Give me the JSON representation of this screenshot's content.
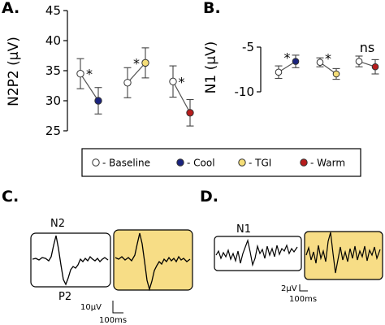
{
  "panels": {
    "a": "A.",
    "b": "B.",
    "c": "C.",
    "d": "D."
  },
  "colors": {
    "baseline": "#ffffff",
    "cool": "#1a237e",
    "tgi": "#f5de78",
    "warm": "#b71c1c",
    "wave_box_highlight": "#f7dd86"
  },
  "chart_data": [
    {
      "type": "scatter",
      "panel": "A.",
      "ylabel": "N2P2 (μV)",
      "ylim": [
        25,
        45
      ],
      "yticks": [
        25,
        30,
        35,
        40,
        45
      ],
      "grid": false,
      "pairs": [
        {
          "points": [
            {
              "condition": "Baseline",
              "mean": 34.5,
              "err": 2.5
            },
            {
              "condition": "Cool",
              "mean": 30.0,
              "err": 2.2
            }
          ],
          "significance": "*"
        },
        {
          "points": [
            {
              "condition": "Baseline",
              "mean": 33.0,
              "err": 2.5
            },
            {
              "condition": "TGI",
              "mean": 36.3,
              "err": 2.5
            }
          ],
          "significance": "*"
        },
        {
          "points": [
            {
              "condition": "Baseline",
              "mean": 33.2,
              "err": 2.6
            },
            {
              "condition": "Warm",
              "mean": 28.0,
              "err": 2.2
            }
          ],
          "significance": "*"
        }
      ]
    },
    {
      "type": "scatter",
      "panel": "B.",
      "ylabel": "N1 (μV)",
      "ylim": [
        -10,
        -5
      ],
      "yticks": [
        -5,
        -10
      ],
      "grid": false,
      "pairs": [
        {
          "points": [
            {
              "condition": "Baseline",
              "mean": -7.8,
              "err": 0.7
            },
            {
              "condition": "Cool",
              "mean": -6.6,
              "err": 0.7
            }
          ],
          "significance": "*"
        },
        {
          "points": [
            {
              "condition": "Baseline",
              "mean": -6.7,
              "err": 0.5
            },
            {
              "condition": "TGI",
              "mean": -8.0,
              "err": 0.6
            }
          ],
          "significance": "*"
        },
        {
          "points": [
            {
              "condition": "Baseline",
              "mean": -6.6,
              "err": 0.6
            },
            {
              "condition": "Warm",
              "mean": -7.2,
              "err": 0.8
            }
          ],
          "significance": "ns"
        }
      ]
    }
  ],
  "legend": [
    {
      "label": "- Baseline",
      "color": "#ffffff"
    },
    {
      "label": "- Cool",
      "color": "#1a237e"
    },
    {
      "label": "- TGI",
      "color": "#f5de78"
    },
    {
      "label": "- Warm",
      "color": "#b71c1c"
    }
  ],
  "waves_c": {
    "peak_top": "N2",
    "peak_bottom": "P2",
    "scale_v": "10μV",
    "scale_t": "100ms"
  },
  "waves_d": {
    "peak": "N1",
    "scale_v": "2μV",
    "scale_t": "100ms"
  }
}
